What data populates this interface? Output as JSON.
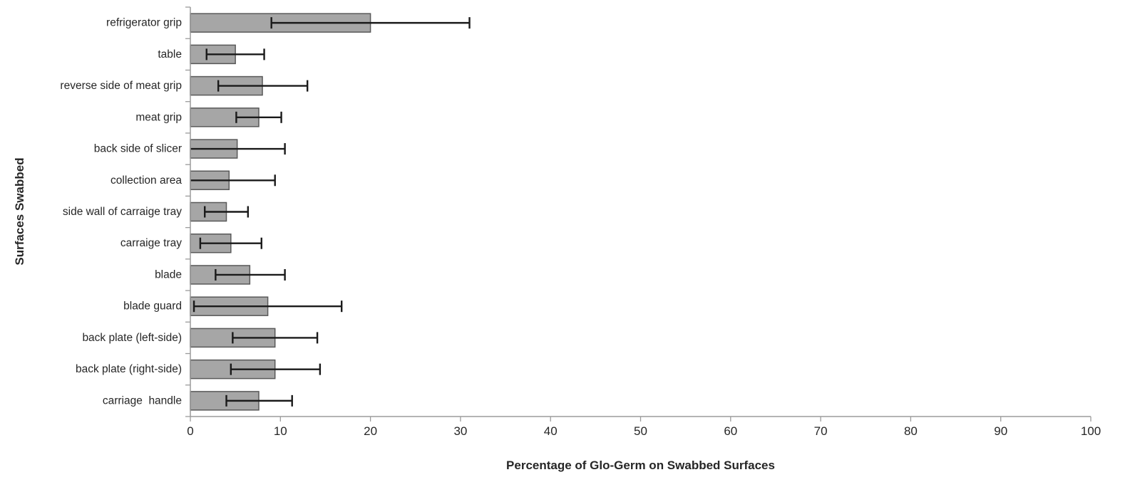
{
  "chart_data": {
    "type": "bar",
    "orientation": "horizontal",
    "title": "",
    "xlabel": "Percentage of Glo-Germ on Swabbed Surfaces",
    "ylabel": "Surfaces Swabbed",
    "xlim": [
      0,
      100
    ],
    "xticks": [
      0,
      10,
      20,
      30,
      40,
      50,
      60,
      70,
      80,
      90,
      100
    ],
    "grid": false,
    "legend_position": "none",
    "categories": [
      "refrigerator grip",
      "table",
      "reverse side of meat grip",
      "meat grip",
      "back side of slicer",
      "collection area",
      "side wall of carraige tray",
      "carraige tray",
      "blade",
      "blade guard",
      "back plate (left-side)",
      "back plate (right-side)",
      "carriage  handle"
    ],
    "values": [
      20,
      5,
      8,
      7.6,
      5.2,
      4.3,
      4,
      4.5,
      6.6,
      8.6,
      9.4,
      9.4,
      7.6
    ],
    "error_low": [
      9,
      1.8,
      3.1,
      5.1,
      0,
      0,
      1.6,
      1.1,
      2.8,
      0.4,
      4.7,
      4.5,
      4
    ],
    "error_high": [
      31,
      8.2,
      13,
      10.1,
      10.5,
      9.4,
      6.4,
      7.9,
      10.5,
      16.8,
      14.1,
      14.4,
      11.3
    ],
    "colors": {
      "bar_fill": "#a6a6a6",
      "bar_border": "#595959",
      "error_bar": "#1a1a1a",
      "axis_line": "#9b9b9b",
      "text": "#262626",
      "background": "#ffffff"
    }
  }
}
